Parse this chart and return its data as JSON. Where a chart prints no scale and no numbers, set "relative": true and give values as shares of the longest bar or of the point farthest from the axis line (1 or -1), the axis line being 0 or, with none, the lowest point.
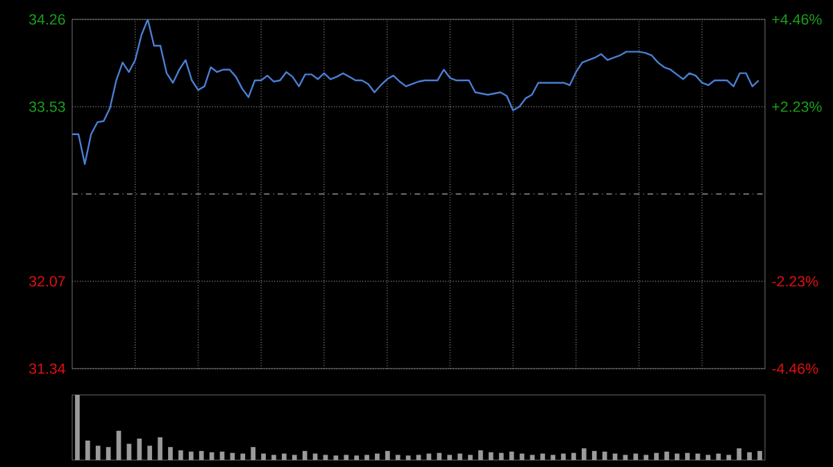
{
  "chart_data": [
    {
      "type": "line",
      "color": "#4a7fd4",
      "categories": [
        null,
        null,
        null,
        null,
        null,
        null,
        null,
        null,
        null,
        null,
        null,
        null,
        null,
        null,
        null,
        null,
        null,
        null,
        null,
        null,
        null,
        null,
        null,
        null,
        null,
        null,
        null,
        null,
        null,
        null,
        null,
        null,
        null,
        null,
        null,
        null,
        null,
        null,
        null,
        null,
        null,
        null,
        null,
        null,
        null,
        null,
        null,
        null,
        null,
        null,
        null,
        null,
        null,
        null,
        null,
        null,
        null,
        null,
        null,
        null,
        null,
        null,
        null,
        null,
        null,
        null,
        null,
        null,
        null,
        null,
        null,
        null,
        null,
        null,
        null,
        null,
        null,
        null,
        null,
        null,
        null,
        null,
        null,
        null,
        null,
        null,
        null,
        null,
        null,
        null,
        null,
        null,
        null,
        null,
        null,
        null,
        null,
        null,
        null,
        null,
        null,
        null,
        null,
        null,
        null,
        null,
        null,
        null,
        null,
        null
      ],
      "values": [
        33.3,
        33.3,
        33.05,
        33.3,
        33.4,
        33.41,
        33.52,
        33.75,
        33.9,
        33.82,
        33.92,
        34.13,
        34.26,
        34.04,
        34.04,
        33.81,
        33.73,
        33.84,
        33.92,
        33.75,
        33.67,
        33.7,
        33.86,
        33.82,
        33.84,
        33.84,
        33.78,
        33.68,
        33.61,
        33.75,
        33.75,
        33.79,
        33.74,
        33.75,
        33.82,
        33.78,
        33.7,
        33.8,
        33.8,
        33.76,
        33.81,
        33.76,
        33.78,
        33.81,
        33.78,
        33.75,
        33.75,
        33.72,
        33.65,
        33.71,
        33.76,
        33.79,
        33.74,
        33.7,
        33.72,
        33.74,
        33.75,
        33.75,
        33.75,
        33.84,
        33.77,
        33.75,
        33.75,
        33.75,
        33.65,
        33.64,
        33.63,
        33.64,
        33.65,
        33.62,
        33.5,
        33.53,
        33.6,
        33.63,
        33.73,
        33.73,
        33.73,
        33.73,
        33.73,
        33.71,
        33.82,
        33.9,
        33.92,
        33.94,
        33.97,
        33.92,
        33.94,
        33.96,
        33.99,
        33.99,
        33.99,
        33.98,
        33.96,
        33.9,
        33.86,
        33.84,
        33.8,
        33.76,
        33.81,
        33.79,
        33.73,
        33.71,
        33.75,
        33.75,
        33.75,
        33.7,
        33.81,
        33.81,
        33.7,
        33.75
      ],
      "ylim": [
        31.34,
        34.26
      ],
      "yticks": [
        31.34,
        32.07,
        33.53,
        34.26
      ],
      "y2lim": [
        -4.46,
        4.46
      ],
      "y2ticks": [
        {
          "value": -4.46,
          "label": "-4.46%"
        },
        {
          "value": -2.23,
          "label": "-2.23%"
        },
        {
          "value": 2.23,
          "label": "+2.23%"
        },
        {
          "value": 4.46,
          "label": "+4.46%"
        }
      ],
      "ref_lines": [
        {
          "axis": "y",
          "value": 32.8,
          "color": "#8a94a0",
          "line_style": "dashed"
        }
      ],
      "grid": true
    },
    {
      "type": "bar",
      "relative": true,
      "color": "#9a9a9a",
      "categories": [
        null,
        null,
        null,
        null,
        null,
        null,
        null,
        null,
        null,
        null,
        null,
        null,
        null,
        null,
        null,
        null,
        null,
        null,
        null,
        null,
        null,
        null,
        null,
        null,
        null,
        null,
        null,
        null,
        null,
        null,
        null,
        null,
        null,
        null,
        null,
        null,
        null,
        null,
        null,
        null,
        null,
        null,
        null,
        null,
        null,
        null,
        null,
        null,
        null,
        null,
        null,
        null,
        null,
        null,
        null,
        null,
        null,
        null,
        null,
        null,
        null,
        null,
        null,
        null,
        null,
        null,
        null
      ],
      "values": [
        1.0,
        0.3,
        0.22,
        0.2,
        0.45,
        0.25,
        0.33,
        0.22,
        0.35,
        0.2,
        0.15,
        0.13,
        0.14,
        0.12,
        0.13,
        0.11,
        0.1,
        0.2,
        0.1,
        0.08,
        0.1,
        0.08,
        0.14,
        0.1,
        0.08,
        0.07,
        0.08,
        0.07,
        0.08,
        0.1,
        0.14,
        0.08,
        0.07,
        0.08,
        0.1,
        0.11,
        0.08,
        0.1,
        0.08,
        0.15,
        0.12,
        0.11,
        0.13,
        0.1,
        0.08,
        0.1,
        0.08,
        0.1,
        0.11,
        0.18,
        0.14,
        0.13,
        0.1,
        0.08,
        0.1,
        0.08,
        0.11,
        0.13,
        0.1,
        0.11,
        0.1,
        0.08,
        0.1,
        0.08,
        0.18,
        0.12,
        0.14
      ]
    }
  ]
}
